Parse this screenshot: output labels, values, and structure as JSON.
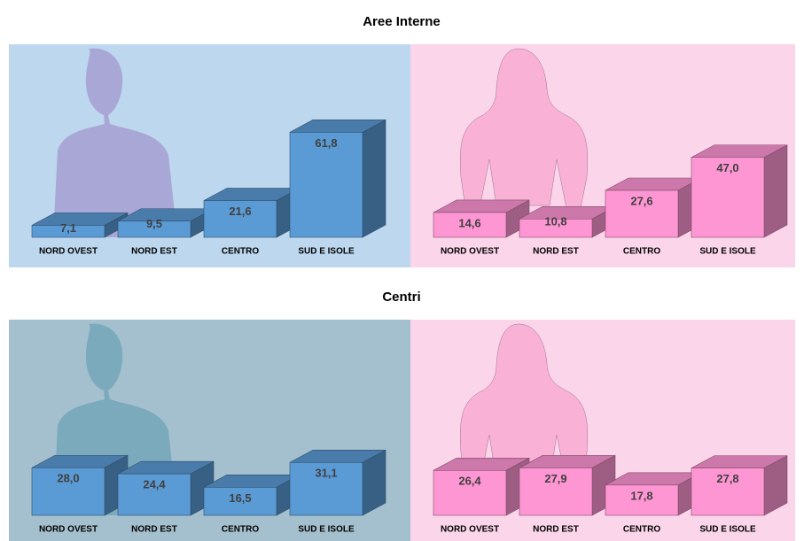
{
  "chart_data": [
    {
      "type": "bar3d",
      "title": "Aree Interne",
      "categories": [
        "NORD OVEST",
        "NORD EST",
        "CENTRO",
        "SUD E ISOLE"
      ],
      "values": [
        7.1,
        9.5,
        21.6,
        61.8
      ],
      "value_labels": [
        "7,1",
        "9,5",
        "21,6",
        "61,8"
      ],
      "color": "#5b9bd5"
    },
    {
      "type": "bar3d",
      "categories": [
        "NORD OVEST",
        "NORD EST",
        "CENTRO",
        "SUD E ISOLE"
      ],
      "values": [
        14.6,
        10.8,
        27.6,
        47.0
      ],
      "value_labels": [
        "14,6",
        "10,8",
        "27,6",
        "47,0"
      ],
      "color": "#ff96d4"
    },
    {
      "type": "bar3d",
      "title": "Centri",
      "categories": [
        "NORD OVEST",
        "NORD EST",
        "CENTRO",
        "SUD E ISOLE"
      ],
      "values": [
        28.0,
        24.4,
        16.5,
        31.1
      ],
      "value_labels": [
        "28,0",
        "24,4",
        "16,5",
        "31,1"
      ],
      "color": "#5b9bd5"
    },
    {
      "type": "bar3d",
      "categories": [
        "NORD OVEST",
        "NORD EST",
        "CENTRO",
        "SUD E ISOLE"
      ],
      "values": [
        26.4,
        27.9,
        17.8,
        27.8
      ],
      "value_labels": [
        "26,4",
        "27,9",
        "17,8",
        "27,8"
      ],
      "color": "#ff96d4"
    }
  ]
}
